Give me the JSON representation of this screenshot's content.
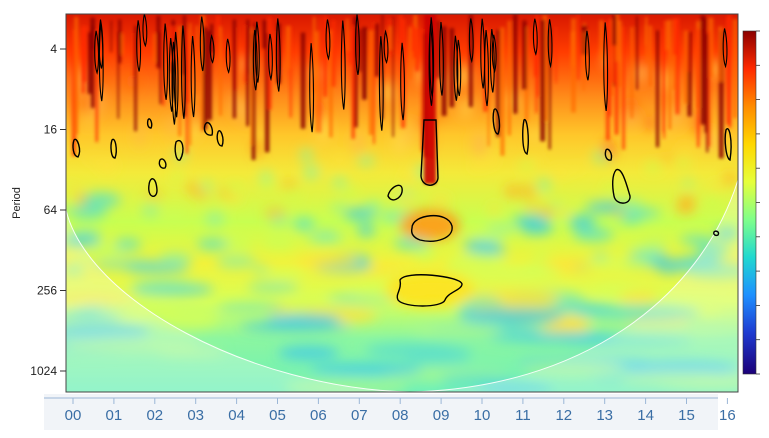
{
  "chart_data": {
    "type": "heatmap",
    "title": "",
    "ylabel": "Period",
    "xlabel": "",
    "y_scale": "log2",
    "y_reversed": true,
    "yticks": [
      4,
      16,
      64,
      256,
      1024
    ],
    "ylim": [
      2,
      1500
    ],
    "xticks": [
      "00",
      "01",
      "02",
      "03",
      "04",
      "05",
      "06",
      "07",
      "08",
      "09",
      "10",
      "11",
      "12",
      "13",
      "14",
      "15",
      "16"
    ],
    "colorbar": {
      "colors": [
        "#8b0000",
        "#ff2a00",
        "#ff8c00",
        "#ffd700",
        "#e6ff3b",
        "#7fff8a",
        "#20d8d0",
        "#1e90ff",
        "#1e3ad0",
        "#1c0078"
      ],
      "tick_labels": []
    },
    "significance_contours": [
      {
        "time_index": 8.5,
        "period": 55
      },
      {
        "time_index": 8.5,
        "period": 220
      },
      {
        "time_index": 13.5,
        "period": 40
      },
      {
        "time_index": 2.0,
        "period": 35
      },
      {
        "time_index": 8.5,
        "period": 25
      }
    ],
    "cone_of_influence": true
  }
}
